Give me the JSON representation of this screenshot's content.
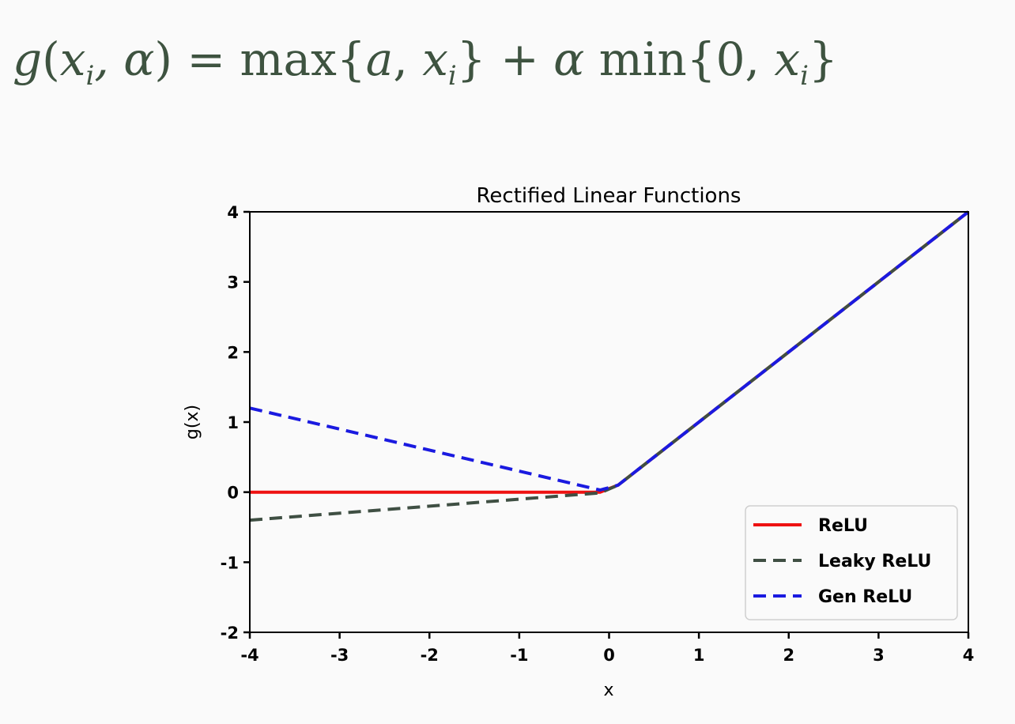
{
  "formula": {
    "text": "g(x_i, α) = max{a, x_i} + α min{0, x_i}",
    "g": "g",
    "open": "(",
    "x1": "x",
    "sub1": "i",
    "comma_alpha": ", α",
    "close_eq": ") = ",
    "max": "max{",
    "a": "a",
    "comma1": ", ",
    "x2": "x",
    "sub2": "i",
    "brace_plus": "} + ",
    "alpha": "α",
    "min": " min{0, ",
    "x3": "x",
    "sub3": "i",
    "end": "}"
  },
  "chart_data": {
    "type": "line",
    "title": "Rectified Linear Functions",
    "xlabel": "x",
    "ylabel": "g(x)",
    "xlim": [
      -4,
      4
    ],
    "ylim": [
      -2,
      4
    ],
    "xticks": [
      "-4",
      "-3",
      "-2",
      "-1",
      "0",
      "1",
      "2",
      "3",
      "4"
    ],
    "yticks": [
      "-2",
      "-1",
      "0",
      "1",
      "2",
      "3",
      "4"
    ],
    "grid": false,
    "legend_position": "lower-right",
    "series": [
      {
        "name": "ReLU",
        "color": "#ee1111",
        "style": "solid",
        "x": [
          -4,
          -0.1,
          0.1,
          4
        ],
        "y": [
          0,
          0,
          0.1,
          4
        ]
      },
      {
        "name": "Leaky ReLU",
        "color": "#3f4f43",
        "style": "dashed",
        "x": [
          -4,
          -0.1,
          0.1,
          4
        ],
        "y": [
          -0.4,
          -0.01,
          0.1,
          4
        ]
      },
      {
        "name": "Gen ReLU",
        "color": "#1a1ae0",
        "style": "dashed",
        "x": [
          -4,
          -0.1,
          0.1,
          4
        ],
        "y": [
          1.2,
          0.03,
          0.1,
          4
        ]
      }
    ]
  }
}
